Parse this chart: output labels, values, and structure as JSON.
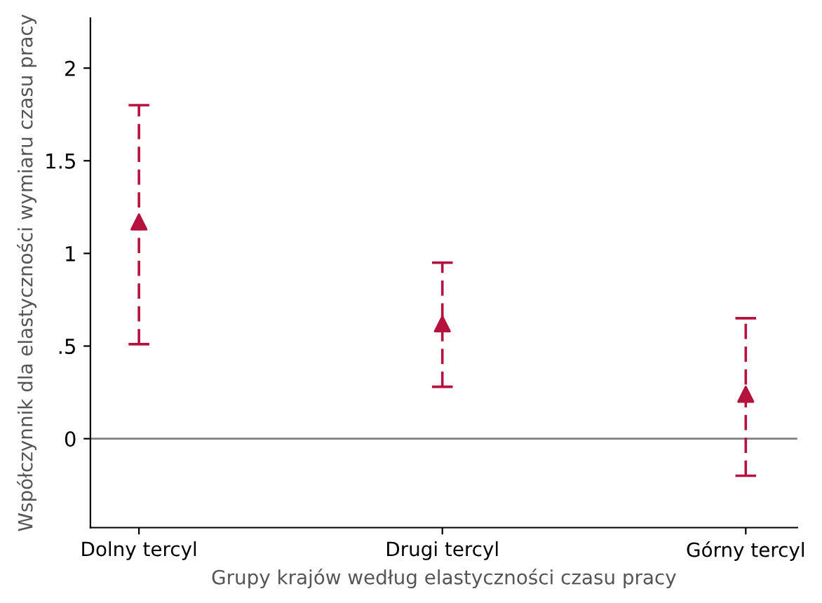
{
  "chart_data": {
    "type": "scatter",
    "xlabel": "Grupy krajów według elastyczności czasu pracy",
    "ylabel": "Współczynnik dla elastyczności wymiaru czasu pracy",
    "categories": [
      "Dolny tercyl",
      "Drugi tercyl",
      "Górny tercyl"
    ],
    "series": [
      {
        "color": "#b5123e",
        "values": [
          1.17,
          0.62,
          0.24
        ],
        "errors": [
          [
            0.51,
            1.8
          ],
          [
            0.28,
            0.95
          ],
          [
            -0.2,
            0.65
          ]
        ]
      }
    ],
    "ylim": [
      -0.48,
      2.27
    ],
    "yticks": [
      0,
      {
        "value": 0.5,
        "label": ".5"
      },
      1,
      1.5,
      2
    ],
    "ref_lines": [
      {
        "axis": "y",
        "value": 0,
        "color": "#808080",
        "line_style": "solid"
      }
    ],
    "marker": "triangle",
    "line_style": "dashed",
    "grid": false,
    "legend": false
  }
}
